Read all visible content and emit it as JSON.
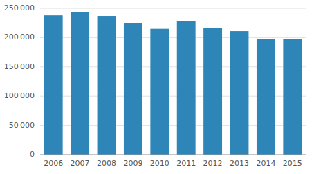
{
  "chart_data": {
    "type": "bar",
    "categories": [
      "2006",
      "2007",
      "2008",
      "2009",
      "2010",
      "2011",
      "2012",
      "2013",
      "2014",
      "2015"
    ],
    "values": [
      238000,
      244000,
      237000,
      225000,
      215000,
      228000,
      217000,
      211000,
      197000,
      197000
    ],
    "color": "#2e86b8",
    "ylim": [
      0,
      250000
    ],
    "yticks": [
      0,
      {
        "value": 50000,
        "label": "50 000"
      },
      {
        "value": 100000,
        "label": "100 000"
      },
      {
        "value": 150000,
        "label": "150 000"
      },
      {
        "value": 200000,
        "label": "200 000"
      },
      {
        "value": 250000,
        "label": "250 000"
      }
    ],
    "grid": true
  }
}
